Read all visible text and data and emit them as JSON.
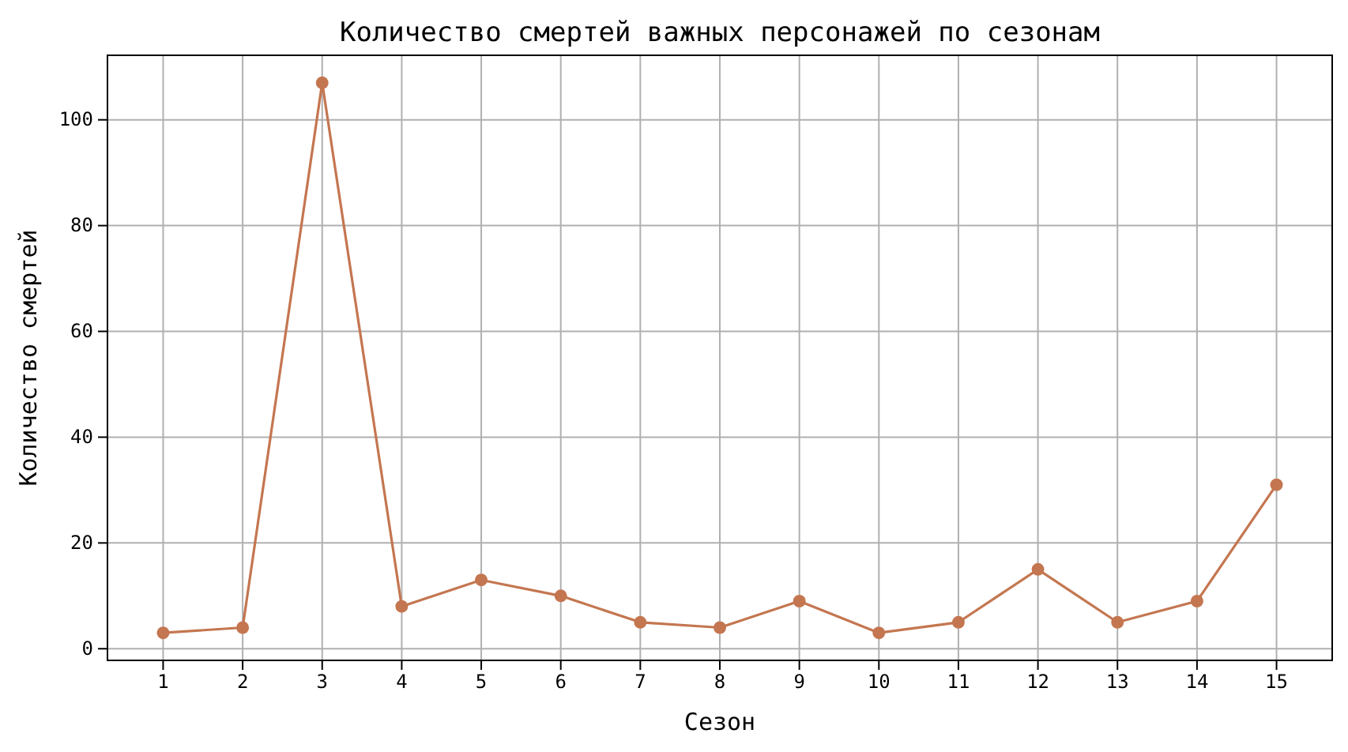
{
  "chart_data": {
    "type": "line",
    "title": "Количество смертей важных персонажей по сезонам",
    "xlabel": "Сезон",
    "ylabel": "Количество смертей",
    "x": [
      1,
      2,
      3,
      4,
      5,
      6,
      7,
      8,
      9,
      10,
      11,
      12,
      13,
      14,
      15
    ],
    "series": [
      {
        "color": "#c47650",
        "values": [
          3,
          4,
          107,
          8,
          13,
          10,
          5,
          4,
          9,
          3,
          5,
          15,
          5,
          9,
          31
        ]
      }
    ],
    "xlim": [
      0.3,
      15.7
    ],
    "xticks": [
      1,
      2,
      3,
      4,
      5,
      6,
      7,
      8,
      9,
      10,
      11,
      12,
      13,
      14,
      15
    ],
    "ylim": [
      -2.2,
      112.2
    ],
    "yticks": [
      0,
      20,
      40,
      60,
      80,
      100
    ],
    "grid": true,
    "marker": "circle",
    "line_style": "solid",
    "legend": false
  }
}
